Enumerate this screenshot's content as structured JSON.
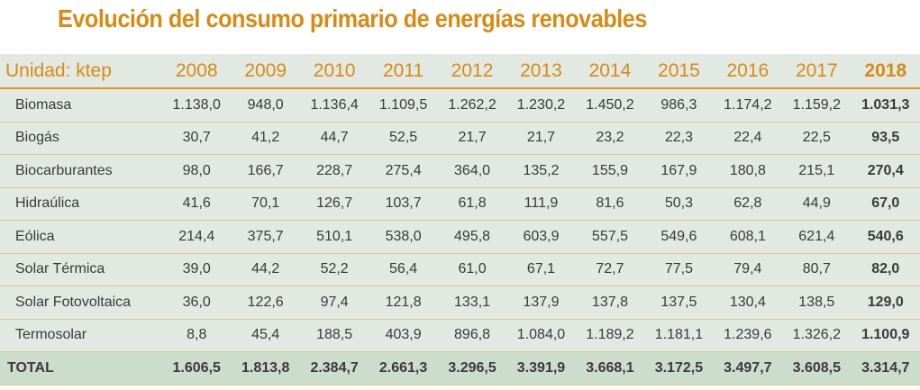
{
  "title": "Evolución del consumo primario de energías renovables",
  "unit_label": "Unidad: ktep",
  "years": [
    "2008",
    "2009",
    "2010",
    "2011",
    "2012",
    "2013",
    "2014",
    "2015",
    "2016",
    "2017",
    "2018"
  ],
  "rows": [
    {
      "label": "Biomasa",
      "values": [
        "1.138,0",
        "948,0",
        "1.136,4",
        "1.109,5",
        "1.262,2",
        "1.230,2",
        "1.450,2",
        "986,3",
        "1.174,2",
        "1.159,2",
        "1.031,3"
      ]
    },
    {
      "label": "Biogás",
      "values": [
        "30,7",
        "41,2",
        "44,7",
        "52,5",
        "21,7",
        "21,7",
        "23,2",
        "22,3",
        "22,4",
        "22,5",
        "93,5"
      ]
    },
    {
      "label": "Biocarburantes",
      "values": [
        "98,0",
        "166,7",
        "228,7",
        "275,4",
        "364,0",
        "135,2",
        "155,9",
        "167,9",
        "180,8",
        "215,1",
        "270,4"
      ]
    },
    {
      "label": "Hidraúlica",
      "values": [
        "41,6",
        "70,1",
        "126,7",
        "103,7",
        "61,8",
        "111,9",
        "81,6",
        "50,3",
        "62,8",
        "44,9",
        "67,0"
      ]
    },
    {
      "label": "Eólica",
      "values": [
        "214,4",
        "375,7",
        "510,1",
        "538,0",
        "495,8",
        "603,9",
        "557,5",
        "549,6",
        "608,1",
        "621,4",
        "540,6"
      ]
    },
    {
      "label": "Solar Térmica",
      "values": [
        "39,0",
        "44,2",
        "52,2",
        "56,4",
        "61,0",
        "67,1",
        "72,7",
        "77,5",
        "79,4",
        "80,7",
        "82,0"
      ]
    },
    {
      "label": "Solar Fotovoltaica",
      "values": [
        "36,0",
        "122,6",
        "97,4",
        "121,8",
        "133,1",
        "137,9",
        "137,8",
        "137,5",
        "130,4",
        "138,5",
        "129,0"
      ]
    },
    {
      "label": "Termosolar",
      "values": [
        "8,8",
        "45,4",
        "188,5",
        "403,9",
        "896,8",
        "1.084,0",
        "1.189,2",
        "1.181,1",
        "1.239,6",
        "1.326,2",
        "1.100,9"
      ]
    }
  ],
  "total": {
    "label": "TOTAL",
    "values": [
      "1.606,5",
      "1.813,8",
      "2.384,7",
      "2.661,3",
      "3.296,5",
      "3.391,9",
      "3.668,1",
      "3.172,5",
      "3.497,7",
      "3.608,5",
      "3.314,7"
    ]
  },
  "colors": {
    "accent": "#d98a12",
    "table_bg": "#e1e9e2",
    "total_bg": "#ccddcd"
  }
}
